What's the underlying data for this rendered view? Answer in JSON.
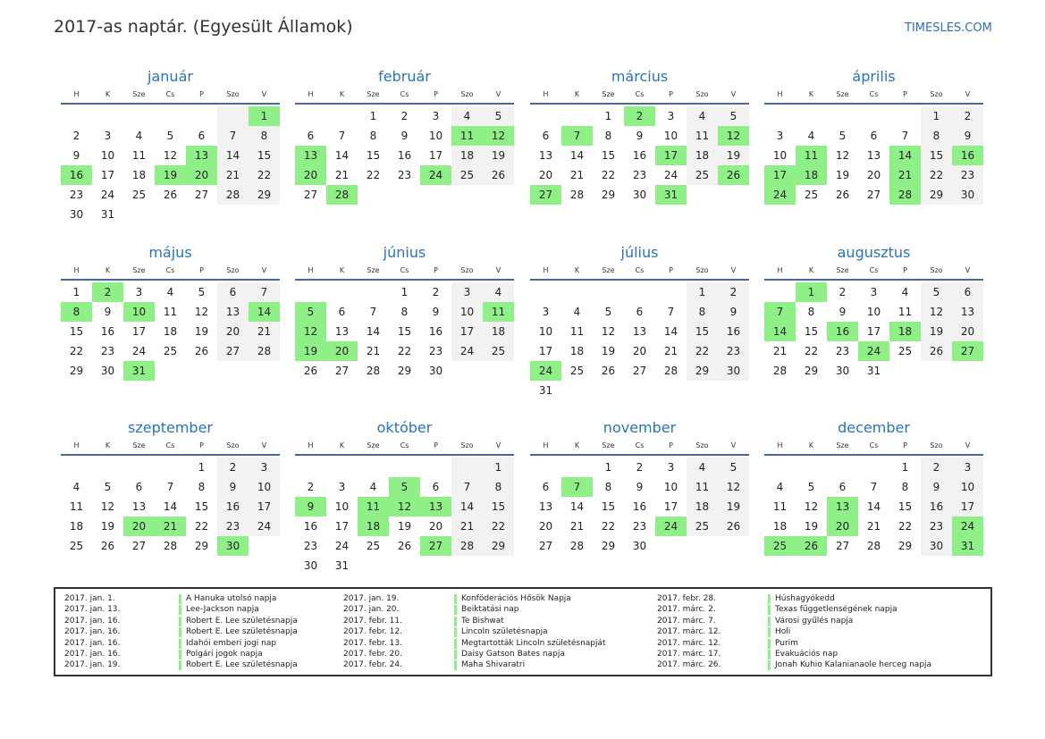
{
  "header": {
    "title": "2017-as naptár. (Egyesült Államok)",
    "brand": "TIMESLES.COM"
  },
  "weekdays": [
    "H",
    "K",
    "Sze",
    "Cs",
    "P",
    "Szo",
    "V"
  ],
  "colors": {
    "accent": "#2a73b8",
    "holiday": "#8ef087",
    "weekend": "#f2f2f2",
    "rule": "#44699a"
  },
  "months": [
    {
      "name": "január",
      "offset": 6,
      "days": 31,
      "holidays": [
        1,
        13,
        16,
        19,
        20
      ]
    },
    {
      "name": "február",
      "offset": 2,
      "days": 28,
      "holidays": [
        11,
        12,
        13,
        20,
        24,
        28
      ]
    },
    {
      "name": "március",
      "offset": 2,
      "days": 31,
      "holidays": [
        2,
        7,
        12,
        17,
        26,
        27,
        31
      ]
    },
    {
      "name": "április",
      "offset": 5,
      "days": 30,
      "holidays": [
        11,
        14,
        16,
        17,
        18,
        21,
        24,
        28
      ]
    },
    {
      "name": "május",
      "offset": 0,
      "days": 31,
      "holidays": [
        2,
        8,
        10,
        14,
        31
      ]
    },
    {
      "name": "június",
      "offset": 3,
      "days": 30,
      "holidays": [
        5,
        11,
        12,
        19,
        20
      ]
    },
    {
      "name": "július",
      "offset": 5,
      "days": 31,
      "holidays": [
        24
      ]
    },
    {
      "name": "augusztus",
      "offset": 1,
      "days": 31,
      "holidays": [
        1,
        7,
        14,
        16,
        18,
        24,
        27
      ]
    },
    {
      "name": "szeptember",
      "offset": 4,
      "days": 30,
      "holidays": [
        20,
        21,
        30
      ]
    },
    {
      "name": "október",
      "offset": 6,
      "days": 31,
      "holidays": [
        5,
        9,
        11,
        12,
        13,
        18,
        27
      ]
    },
    {
      "name": "november",
      "offset": 2,
      "days": 30,
      "holidays": [
        7,
        24
      ]
    },
    {
      "name": "december",
      "offset": 4,
      "days": 31,
      "holidays": [
        13,
        20,
        24,
        25,
        26,
        31
      ]
    }
  ],
  "legend": [
    [
      {
        "date": "2017. jan. 1.",
        "name": "A Hanuka utolsó napja"
      },
      {
        "date": "2017. jan. 13.",
        "name": "Lee-Jackson napja"
      },
      {
        "date": "2017. jan. 16.",
        "name": "Robert E. Lee születésnapja"
      },
      {
        "date": "2017. jan. 16.",
        "name": "Robert E. Lee születésnapja"
      },
      {
        "date": "2017. jan. 16.",
        "name": "Idahói emberi jogi nap"
      },
      {
        "date": "2017. jan. 16.",
        "name": "Polgári jogok napja"
      },
      {
        "date": "2017. jan. 19.",
        "name": "Robert E. Lee születésnapja"
      }
    ],
    [
      {
        "date": "2017. jan. 19.",
        "name": "Konföderációs Hősök Napja"
      },
      {
        "date": "2017. jan. 20.",
        "name": "Beiktatási nap"
      },
      {
        "date": "2017. febr. 11.",
        "name": "Te Bishwat"
      },
      {
        "date": "2017. febr. 12.",
        "name": "Lincoln születésnapja"
      },
      {
        "date": "2017. febr. 13.",
        "name": "Megtartották Lincoln születésnapját"
      },
      {
        "date": "2017. febr. 20.",
        "name": "Daisy Gatson Bates napja"
      },
      {
        "date": "2017. febr. 24.",
        "name": "Maha Shivaratri"
      }
    ],
    [
      {
        "date": "2017. febr. 28.",
        "name": "Húshagyókedd"
      },
      {
        "date": "2017. márc. 2.",
        "name": "Texas függetlenségének napja"
      },
      {
        "date": "2017. márc. 7.",
        "name": "Városi gyűlés napja"
      },
      {
        "date": "2017. márc. 12.",
        "name": "Holi"
      },
      {
        "date": "2017. márc. 12.",
        "name": "Purim"
      },
      {
        "date": "2017. márc. 17.",
        "name": "Evakuációs nap"
      },
      {
        "date": "2017. márc. 26.",
        "name": "Jonah Kuhio Kalanianaole herceg napja"
      }
    ]
  ]
}
